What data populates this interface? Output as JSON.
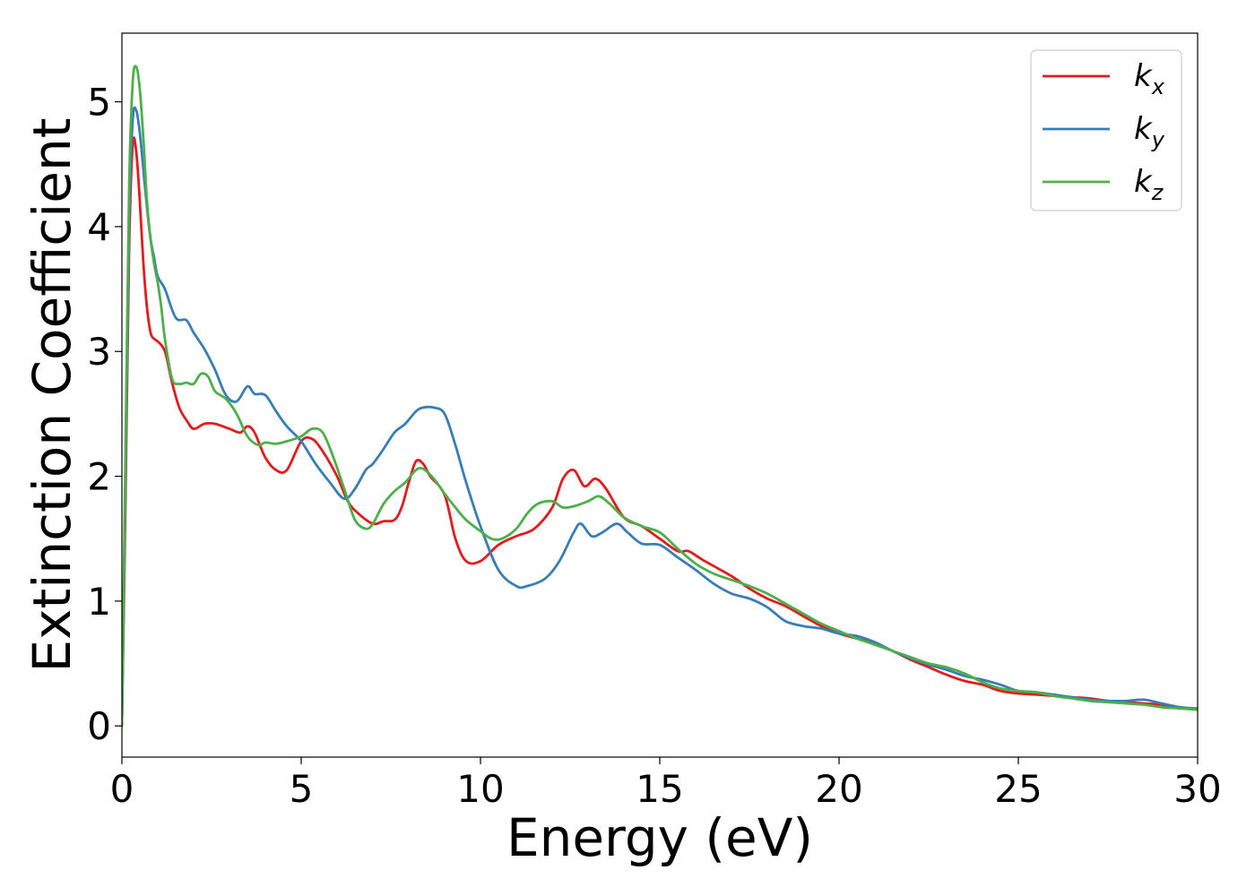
{
  "chart_data": {
    "type": "line",
    "title": "",
    "xlabel": "Energy (eV)",
    "ylabel": "Extinction Coefficient",
    "xlim": [
      0,
      30
    ],
    "ylim": [
      -0.25,
      5.55
    ],
    "xticks": [
      0,
      5,
      10,
      15,
      20,
      25,
      30
    ],
    "yticks": [
      0,
      1,
      2,
      3,
      4,
      5
    ],
    "grid": false,
    "legend_position": "top-right",
    "series": [
      {
        "name": "k",
        "subscript": "x",
        "color": "#e41a1c",
        "x": [
          0,
          0.1,
          0.2,
          0.3,
          0.4,
          0.5,
          0.6,
          0.7,
          0.8,
          0.9,
          1.0,
          1.2,
          1.4,
          1.6,
          1.8,
          2.0,
          2.3,
          2.6,
          3.0,
          3.3,
          3.5,
          3.7,
          4.0,
          4.3,
          4.6,
          5.0,
          5.3,
          5.6,
          6.0,
          6.3,
          6.6,
          7.0,
          7.3,
          7.6,
          7.8,
          8.0,
          8.2,
          8.4,
          8.6,
          9.0,
          9.3,
          9.6,
          10.0,
          10.5,
          11.0,
          11.5,
          12.0,
          12.3,
          12.6,
          12.9,
          13.2,
          13.5,
          14.0,
          14.5,
          15.0,
          15.5,
          15.8,
          16.2,
          17.0,
          17.5,
          18.0,
          18.5,
          19.0,
          19.5,
          20.0,
          20.5,
          21.0,
          21.5,
          22.0,
          22.5,
          23.0,
          23.5,
          24.0,
          24.5,
          25.0,
          25.5,
          26.0,
          26.5,
          27.0,
          27.5,
          28.0,
          28.5,
          29.0,
          29.5,
          30.0
        ],
        "y": [
          0.0,
          1.8,
          3.8,
          4.65,
          4.6,
          4.2,
          3.7,
          3.35,
          3.15,
          3.1,
          3.08,
          3.0,
          2.75,
          2.55,
          2.45,
          2.38,
          2.42,
          2.42,
          2.38,
          2.35,
          2.4,
          2.35,
          2.15,
          2.05,
          2.05,
          2.28,
          2.3,
          2.2,
          2.0,
          1.8,
          1.7,
          1.62,
          1.64,
          1.65,
          1.75,
          1.95,
          2.12,
          2.1,
          2.0,
          1.85,
          1.5,
          1.32,
          1.32,
          1.45,
          1.52,
          1.58,
          1.75,
          1.98,
          2.05,
          1.92,
          1.98,
          1.9,
          1.67,
          1.6,
          1.5,
          1.4,
          1.4,
          1.33,
          1.2,
          1.1,
          1.02,
          0.96,
          0.88,
          0.8,
          0.74,
          0.7,
          0.66,
          0.6,
          0.53,
          0.47,
          0.41,
          0.36,
          0.33,
          0.28,
          0.26,
          0.25,
          0.24,
          0.23,
          0.22,
          0.2,
          0.19,
          0.18,
          0.17,
          0.15,
          0.13
        ]
      },
      {
        "name": "k",
        "subscript": "y",
        "color": "#377eb8",
        "x": [
          0,
          0.1,
          0.2,
          0.3,
          0.4,
          0.5,
          0.6,
          0.7,
          0.8,
          0.9,
          1.0,
          1.2,
          1.5,
          1.8,
          2.0,
          2.3,
          2.6,
          2.9,
          3.2,
          3.5,
          3.7,
          4.0,
          4.3,
          4.6,
          5.0,
          5.4,
          5.8,
          6.2,
          6.5,
          6.8,
          7.0,
          7.3,
          7.6,
          7.9,
          8.2,
          8.4,
          8.7,
          9.0,
          9.3,
          9.6,
          10.0,
          10.5,
          11.0,
          11.3,
          11.8,
          12.2,
          12.6,
          12.8,
          13.1,
          13.4,
          13.8,
          14.1,
          14.5,
          15.0,
          15.5,
          16.0,
          16.5,
          17.0,
          17.5,
          18.0,
          18.5,
          19.0,
          19.5,
          20.0,
          20.5,
          21.0,
          21.5,
          22.0,
          22.5,
          23.0,
          23.5,
          24.0,
          24.5,
          25.0,
          25.5,
          26.0,
          26.5,
          27.0,
          27.5,
          28.0,
          28.5,
          29.0,
          29.5,
          30.0
        ],
        "y": [
          0.0,
          2.0,
          4.0,
          4.85,
          4.93,
          4.75,
          4.45,
          4.15,
          3.9,
          3.75,
          3.6,
          3.5,
          3.27,
          3.25,
          3.15,
          3.02,
          2.85,
          2.65,
          2.6,
          2.72,
          2.66,
          2.65,
          2.52,
          2.4,
          2.28,
          2.1,
          1.95,
          1.82,
          1.9,
          2.05,
          2.1,
          2.22,
          2.35,
          2.42,
          2.52,
          2.55,
          2.55,
          2.5,
          2.25,
          1.95,
          1.6,
          1.25,
          1.12,
          1.12,
          1.18,
          1.32,
          1.55,
          1.62,
          1.52,
          1.55,
          1.62,
          1.55,
          1.46,
          1.45,
          1.35,
          1.25,
          1.14,
          1.06,
          1.02,
          0.95,
          0.84,
          0.8,
          0.78,
          0.74,
          0.72,
          0.67,
          0.6,
          0.54,
          0.49,
          0.45,
          0.4,
          0.37,
          0.33,
          0.28,
          0.27,
          0.25,
          0.23,
          0.21,
          0.2,
          0.2,
          0.21,
          0.18,
          0.15,
          0.14
        ]
      },
      {
        "name": "k",
        "subscript": "z",
        "color": "#4daf4a",
        "x": [
          0,
          0.1,
          0.2,
          0.3,
          0.4,
          0.5,
          0.6,
          0.7,
          0.8,
          0.9,
          1.0,
          1.1,
          1.2,
          1.4,
          1.6,
          1.8,
          2.0,
          2.2,
          2.4,
          2.6,
          2.9,
          3.2,
          3.5,
          3.8,
          4.0,
          4.3,
          4.6,
          5.0,
          5.3,
          5.6,
          5.9,
          6.2,
          6.5,
          6.8,
          7.0,
          7.3,
          7.6,
          7.9,
          8.2,
          8.4,
          8.7,
          9.0,
          9.3,
          9.6,
          10.0,
          10.3,
          10.6,
          11.0,
          11.3,
          11.6,
          12.0,
          12.3,
          12.6,
          13.0,
          13.3,
          13.6,
          14.0,
          14.5,
          15.0,
          15.5,
          16.0,
          16.5,
          17.0,
          17.5,
          18.0,
          18.5,
          19.0,
          19.5,
          20.0,
          20.5,
          21.0,
          21.5,
          22.0,
          22.5,
          23.0,
          23.5,
          24.0,
          24.5,
          25.0,
          25.5,
          26.0,
          26.5,
          27.0,
          27.5,
          28.0,
          28.5,
          29.0,
          29.5,
          30.0
        ],
        "y": [
          0.0,
          2.2,
          4.3,
          5.15,
          5.28,
          5.1,
          4.7,
          4.2,
          3.9,
          3.7,
          3.55,
          3.35,
          3.1,
          2.78,
          2.74,
          2.75,
          2.74,
          2.82,
          2.8,
          2.68,
          2.62,
          2.5,
          2.32,
          2.25,
          2.27,
          2.26,
          2.28,
          2.32,
          2.38,
          2.35,
          2.15,
          1.9,
          1.65,
          1.58,
          1.62,
          1.78,
          1.88,
          1.95,
          2.05,
          2.06,
          1.98,
          1.86,
          1.75,
          1.65,
          1.56,
          1.5,
          1.5,
          1.58,
          1.7,
          1.78,
          1.8,
          1.75,
          1.76,
          1.8,
          1.84,
          1.78,
          1.67,
          1.6,
          1.55,
          1.42,
          1.3,
          1.22,
          1.17,
          1.12,
          1.06,
          0.98,
          0.9,
          0.82,
          0.76,
          0.7,
          0.65,
          0.6,
          0.55,
          0.5,
          0.47,
          0.42,
          0.35,
          0.3,
          0.28,
          0.27,
          0.24,
          0.22,
          0.2,
          0.19,
          0.18,
          0.17,
          0.15,
          0.14,
          0.13
        ]
      }
    ]
  }
}
